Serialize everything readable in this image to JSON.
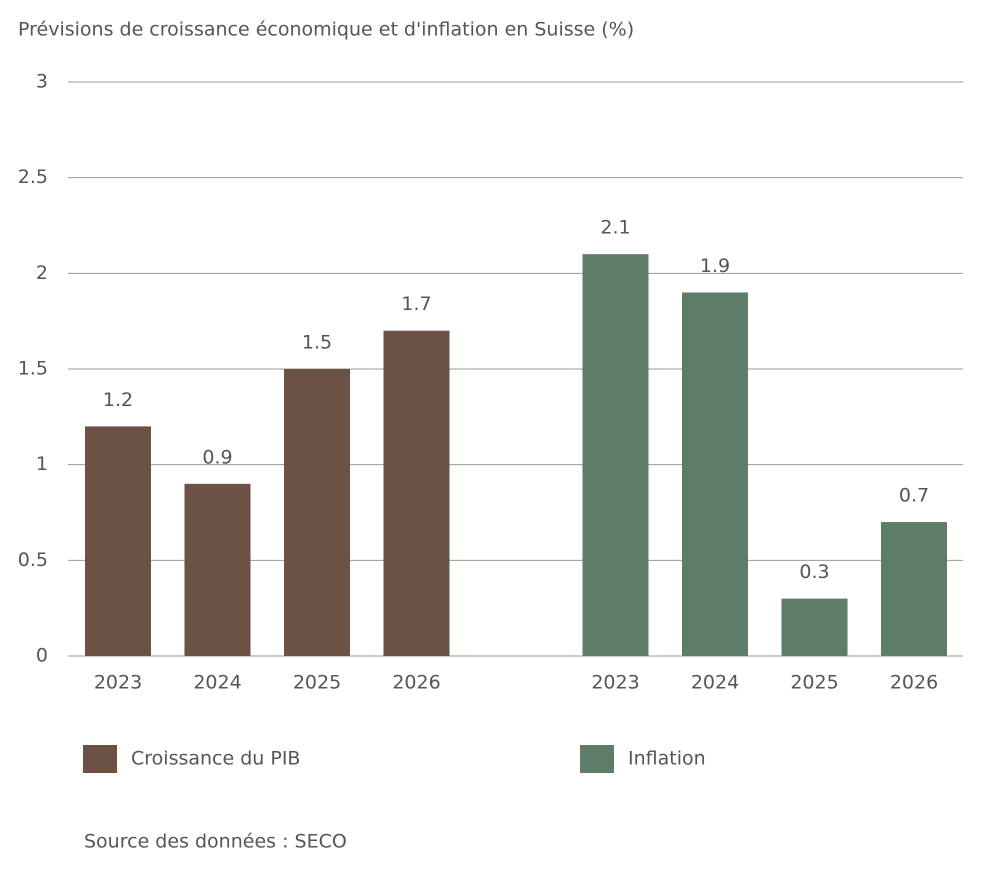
{
  "chart_data": {
    "type": "bar",
    "title": "Prévisions de croissance économique et d'inflation en Suisse (%)",
    "categories": [
      "2023",
      "2024",
      "2025",
      "2026",
      "2023",
      "2024",
      "2025",
      "2026"
    ],
    "series": [
      {
        "name": "Croissance du PIB",
        "color": "#6b5244",
        "values": [
          1.2,
          0.9,
          1.5,
          1.7,
          null,
          null,
          null,
          null
        ]
      },
      {
        "name": "Inflation",
        "color": "#5d7d68",
        "values": [
          null,
          null,
          null,
          null,
          2.1,
          1.9,
          0.3,
          0.7
        ]
      }
    ],
    "ylim": [
      0,
      3
    ],
    "yticks": [
      0,
      0.5,
      1,
      1.5,
      2,
      2.5,
      3
    ],
    "grid": true,
    "source": "Source des données : SECO"
  }
}
